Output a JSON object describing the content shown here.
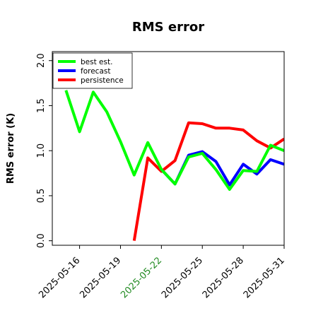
{
  "chart_data": {
    "type": "line",
    "title": "RMS error",
    "xlabel": "",
    "ylabel": "RMS error (K)",
    "x": [
      "2025-05-15",
      "2025-05-16",
      "2025-05-17",
      "2025-05-18",
      "2025-05-19",
      "2025-05-20",
      "2025-05-21",
      "2025-05-22",
      "2025-05-23",
      "2025-05-24",
      "2025-05-25",
      "2025-05-26",
      "2025-05-27",
      "2025-05-28",
      "2025-05-29",
      "2025-05-30",
      "2025-05-31"
    ],
    "xtick_labels": [
      "2025-05-16",
      "2025-05-19",
      "2025-05-22",
      "2025-05-25",
      "2025-05-28",
      "2025-05-31"
    ],
    "highlighted_tick": "2025-05-22",
    "highlight_color": "#228b22",
    "xlim": [
      "2025-05-14",
      "2025-05-31"
    ],
    "ylim": [
      -0.05,
      2.1
    ],
    "yticks": [
      0.0,
      0.5,
      1.0,
      1.5,
      2.0
    ],
    "grid": false,
    "legend_position": "top-left",
    "series": [
      {
        "name": "best est.",
        "color": "#00ff00",
        "values": [
          1.67,
          1.21,
          1.65,
          1.43,
          1.1,
          0.73,
          1.09,
          0.79,
          0.63,
          0.93,
          0.97,
          0.79,
          0.57,
          0.78,
          0.77,
          1.06,
          1.0
        ]
      },
      {
        "name": "forecast",
        "color": "#0000ff",
        "values": [
          null,
          null,
          null,
          null,
          null,
          null,
          null,
          0.79,
          0.63,
          0.95,
          0.99,
          0.88,
          0.62,
          0.85,
          0.74,
          0.9,
          0.85
        ]
      },
      {
        "name": "persistence",
        "color": "#ff0000",
        "values": [
          null,
          null,
          null,
          null,
          null,
          0.0,
          0.92,
          0.77,
          0.89,
          1.31,
          1.3,
          1.25,
          1.25,
          1.23,
          1.11,
          1.03,
          1.13
        ]
      }
    ]
  }
}
